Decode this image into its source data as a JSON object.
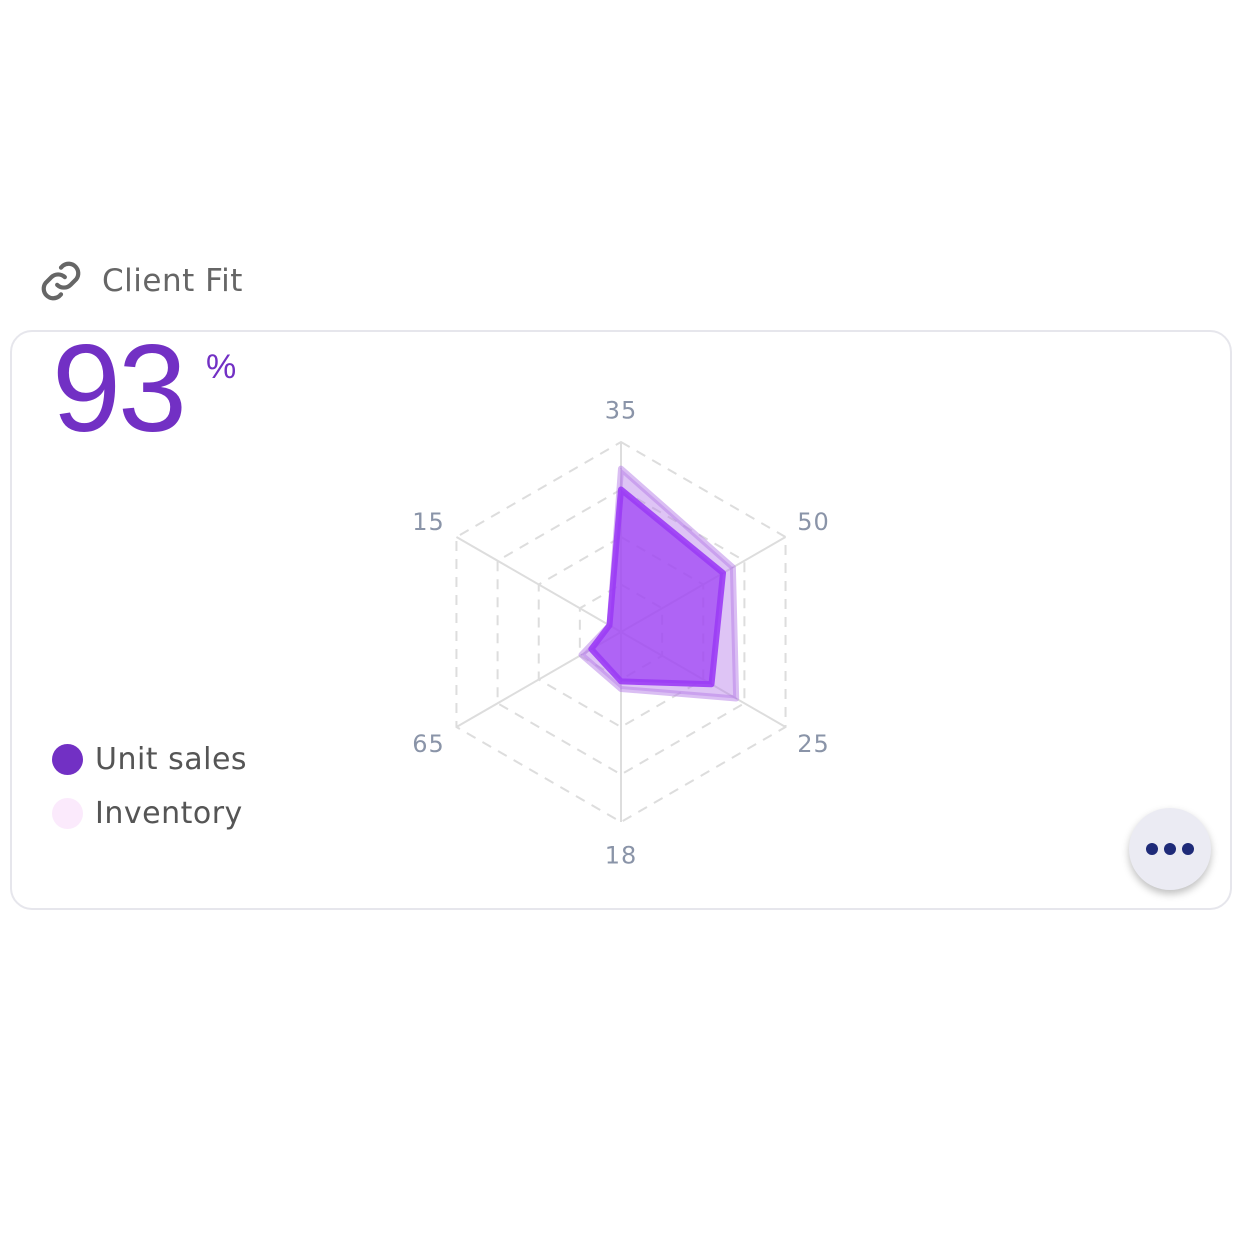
{
  "header": {
    "title": "Client Fit",
    "icon": "link-icon"
  },
  "kpi": {
    "value": "93",
    "unit": "%"
  },
  "legend": [
    {
      "label": "Unit sales",
      "color": "#7230c4"
    },
    {
      "label": "Inventory",
      "color": "#fbeafc"
    }
  ],
  "more_button": {
    "icon": "more-horizontal-icon"
  },
  "chart_data": {
    "type": "radar",
    "categories": [
      "35",
      "50",
      "25",
      "18",
      "65",
      "15"
    ],
    "rlim": [
      0,
      100
    ],
    "rings": 4,
    "series": [
      {
        "name": "Unit sales",
        "values": [
          75,
          62,
          55,
          26,
          18,
          7
        ],
        "color": "#9b3cf5"
      },
      {
        "name": "Inventory",
        "values": [
          86,
          68,
          70,
          30,
          24,
          7
        ],
        "color": "#b57de8"
      }
    ]
  }
}
